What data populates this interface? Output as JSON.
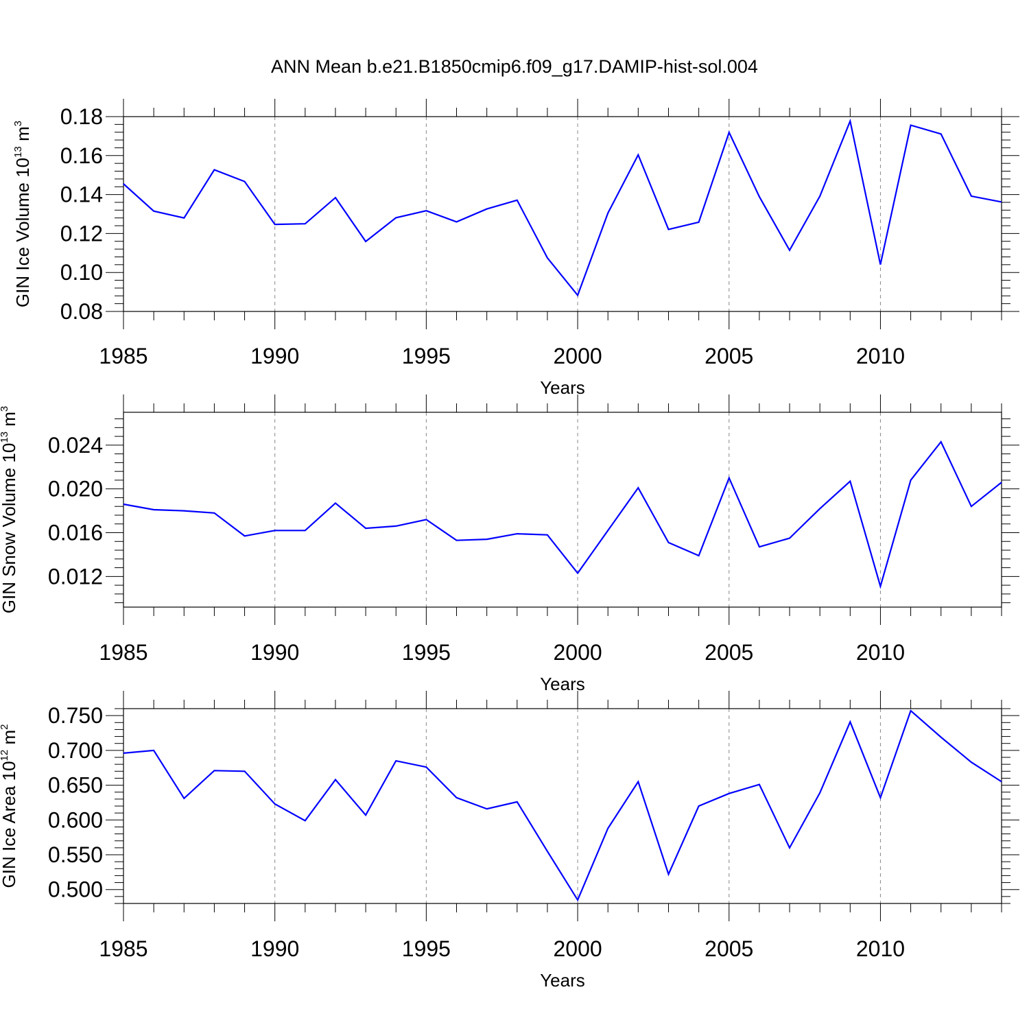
{
  "title": "ANN Mean b.e21.B1850cmip6.f09_g17.DAMIP-hist-sol.004",
  "chart_data": [
    {
      "type": "line",
      "id": "ice-volume",
      "ylabel_main": "GIN Ice Volume 10",
      "ylabel_exp": "13",
      "ylabel_unit": " m",
      "ylabel_unit_exp": "3",
      "xlabel": "Years",
      "xlim": [
        1985,
        2014
      ],
      "ylim": [
        0.08,
        0.18
      ],
      "xticks": [
        1985,
        1990,
        1995,
        2000,
        2005,
        2010
      ],
      "xtick_labels": [
        "1985",
        "1990",
        "1995",
        "2000",
        "2005",
        "2010"
      ],
      "yticks": [
        0.08,
        0.1,
        0.12,
        0.14,
        0.16,
        0.18
      ],
      "ytick_labels": [
        "0.08",
        "0.10",
        "0.12",
        "0.14",
        "0.16",
        "0.18"
      ],
      "color": "#0000ff",
      "x": [
        1985,
        1986,
        1987,
        1988,
        1989,
        1990,
        1991,
        1992,
        1993,
        1994,
        1995,
        1996,
        1997,
        1998,
        1999,
        2000,
        2001,
        2002,
        2003,
        2004,
        2005,
        2006,
        2007,
        2008,
        2009,
        2010,
        2011,
        2012,
        2013,
        2014
      ],
      "values": [
        0.1455,
        0.1315,
        0.128,
        0.1527,
        0.1467,
        0.1247,
        0.125,
        0.1384,
        0.1159,
        0.1281,
        0.1317,
        0.126,
        0.1326,
        0.1371,
        0.1075,
        0.0883,
        0.1305,
        0.1604,
        0.1221,
        0.1258,
        0.1719,
        0.1389,
        0.1114,
        0.1392,
        0.1777,
        0.1041,
        0.1756,
        0.1711,
        0.1392,
        0.1362
      ]
    },
    {
      "type": "line",
      "id": "snow-volume",
      "ylabel_main": "GIN Snow Volume 10",
      "ylabel_exp": "13",
      "ylabel_unit": " m",
      "ylabel_unit_exp": "3",
      "xlabel": "Years",
      "xlim": [
        1985,
        2014
      ],
      "ylim": [
        0.0092,
        0.027
      ],
      "xticks": [
        1985,
        1990,
        1995,
        2000,
        2005,
        2010
      ],
      "xtick_labels": [
        "1985",
        "1990",
        "1995",
        "2000",
        "2005",
        "2010"
      ],
      "yticks": [
        0.012,
        0.016,
        0.02,
        0.024
      ],
      "ytick_labels": [
        "0.012",
        "0.016",
        "0.020",
        "0.024"
      ],
      "color": "#0000ff",
      "x": [
        1985,
        1986,
        1987,
        1988,
        1989,
        1990,
        1991,
        1992,
        1993,
        1994,
        1995,
        1996,
        1997,
        1998,
        1999,
        2000,
        2001,
        2002,
        2003,
        2004,
        2005,
        2006,
        2007,
        2008,
        2009,
        2010,
        2011,
        2012,
        2013,
        2014
      ],
      "values": [
        0.0186,
        0.0181,
        0.018,
        0.0178,
        0.0157,
        0.0162,
        0.0162,
        0.0187,
        0.0164,
        0.0166,
        0.0172,
        0.0153,
        0.0154,
        0.0159,
        0.0158,
        0.0123,
        0.0162,
        0.0201,
        0.0151,
        0.0139,
        0.021,
        0.0147,
        0.0155,
        0.0182,
        0.0207,
        0.0111,
        0.0208,
        0.0243,
        0.0184,
        0.0206
      ]
    },
    {
      "type": "line",
      "id": "ice-area",
      "ylabel_main": "GIN Ice Area 10",
      "ylabel_exp": "12",
      "ylabel_unit": " m",
      "ylabel_unit_exp": "2",
      "xlabel": "Years",
      "xlim": [
        1985,
        2014
      ],
      "ylim": [
        0.48,
        0.76
      ],
      "xticks": [
        1985,
        1990,
        1995,
        2000,
        2005,
        2010
      ],
      "xtick_labels": [
        "1985",
        "1990",
        "1995",
        "2000",
        "2005",
        "2010"
      ],
      "yticks": [
        0.5,
        0.55,
        0.6,
        0.65,
        0.7,
        0.75
      ],
      "ytick_labels": [
        "0.500",
        "0.550",
        "0.600",
        "0.650",
        "0.700",
        "0.750"
      ],
      "color": "#0000ff",
      "x": [
        1985,
        1986,
        1987,
        1988,
        1989,
        1990,
        1991,
        1992,
        1993,
        1994,
        1995,
        1996,
        1997,
        1998,
        1999,
        2000,
        2001,
        2002,
        2003,
        2004,
        2005,
        2006,
        2007,
        2008,
        2009,
        2010,
        2011,
        2012,
        2013,
        2014
      ],
      "values": [
        0.696,
        0.7,
        0.631,
        0.671,
        0.67,
        0.623,
        0.599,
        0.658,
        0.607,
        0.685,
        0.676,
        0.632,
        0.616,
        0.626,
        0.555,
        0.485,
        0.588,
        0.655,
        0.522,
        0.62,
        0.638,
        0.651,
        0.56,
        0.639,
        0.741,
        0.632,
        0.757,
        0.719,
        0.683,
        0.655
      ]
    }
  ]
}
